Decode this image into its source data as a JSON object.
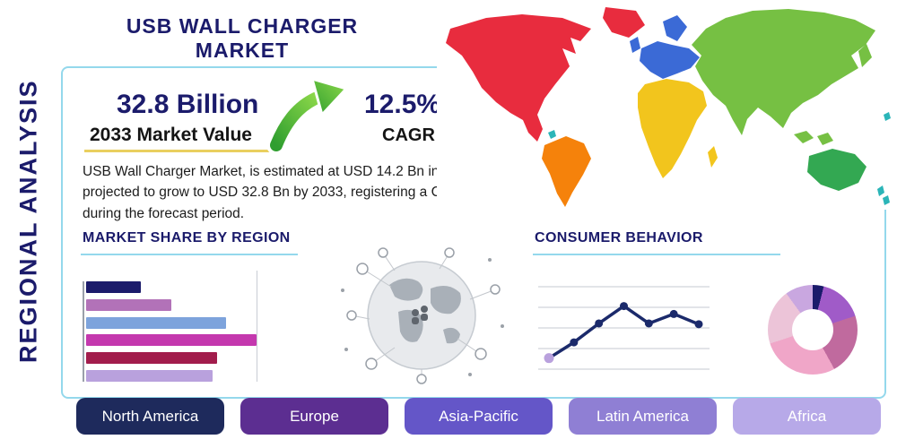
{
  "page": {
    "title": "USB WALL CHARGER MARKET",
    "side_label": "REGIONAL ANALYSIS"
  },
  "stats": {
    "market_value": "32.8 Billion",
    "market_value_caption": "2033 Market Value",
    "cagr_value": "12.5%",
    "cagr_caption": "CAGR",
    "description": "USB Wall Charger Market, is estimated at USD 14.2 Bn in 2026, is projected to grow to USD 32.8 Bn by 2033, registering a CAGR of 12.5% during the forecast period."
  },
  "sections": {
    "market_share_title": "MARKET SHARE BY REGION",
    "consumer_behavior_title": "CONSUMER BEHAVIOR"
  },
  "icons": {
    "growth_arrow": "curved-up-right-green-arrow",
    "globe": "global-network-globe-graphic"
  },
  "colors": {
    "navy": "#1b1b6b",
    "frame_border": "#94d8ec",
    "heading_underline": "#94d8ec",
    "caption_underline": "#e9cf5f",
    "arrow_green_light": "#8ed94a",
    "arrow_green_dark": "#2f9e2f",
    "body_text": "#1c1c1c"
  },
  "map_regions": [
    {
      "name": "north-america",
      "color": "#e82c3e"
    },
    {
      "name": "greenland",
      "color": "#e82c3e"
    },
    {
      "name": "south-america",
      "color": "#f5820b"
    },
    {
      "name": "europe",
      "color": "#3b6ad6"
    },
    {
      "name": "africa",
      "color": "#f2c51d"
    },
    {
      "name": "asia",
      "color": "#76c043"
    },
    {
      "name": "oceania",
      "color": "#33a852"
    },
    {
      "name": "islands",
      "color": "#2bb5b8"
    }
  ],
  "region_buttons": [
    {
      "label": "North America",
      "color": "#1e2a5c"
    },
    {
      "label": "Europe",
      "color": "#5c2e91"
    },
    {
      "label": "Asia-Pacific",
      "color": "#6456c8"
    },
    {
      "label": "Latin America",
      "color": "#8f7fd4"
    },
    {
      "label": "Africa",
      "color": "#b7a9e8"
    }
  ],
  "chart_data": [
    {
      "type": "bar",
      "title": "MARKET SHARE BY REGION",
      "orientation": "horizontal",
      "categories": [
        "",
        "",
        "",
        "",
        "",
        ""
      ],
      "values": [
        32,
        50,
        82,
        100,
        77,
        74
      ],
      "unit": "relative bar length (no axis labels shown)",
      "colors": [
        "#1b1b6b",
        "#b272b8",
        "#7da3dc",
        "#c438ae",
        "#a21d4c",
        "#b9a1dd"
      ],
      "grid": false,
      "legend": false
    },
    {
      "type": "line",
      "title": "CONSUMER BEHAVIOR",
      "x": [
        1,
        2,
        3,
        4,
        5,
        6,
        7
      ],
      "values": [
        14,
        34,
        58,
        80,
        58,
        70,
        57
      ],
      "unit": "relative height (no axis labels shown)",
      "line_color": "#1b2a6b",
      "marker_color": "#1b2a6b",
      "first_marker_color": "#b9a1dd",
      "grid": true,
      "gridline_count": 5,
      "legend": false
    },
    {
      "type": "pie",
      "donut": true,
      "title": "",
      "values": [
        4,
        16,
        22,
        28,
        20,
        10
      ],
      "unit": "estimated percent of circle (no labels shown)",
      "colors": [
        "#1b1b6b",
        "#a05bc8",
        "#c06a9e",
        "#f0a6c8",
        "#ecc4d8",
        "#c9a7e0"
      ],
      "legend": false
    }
  ]
}
